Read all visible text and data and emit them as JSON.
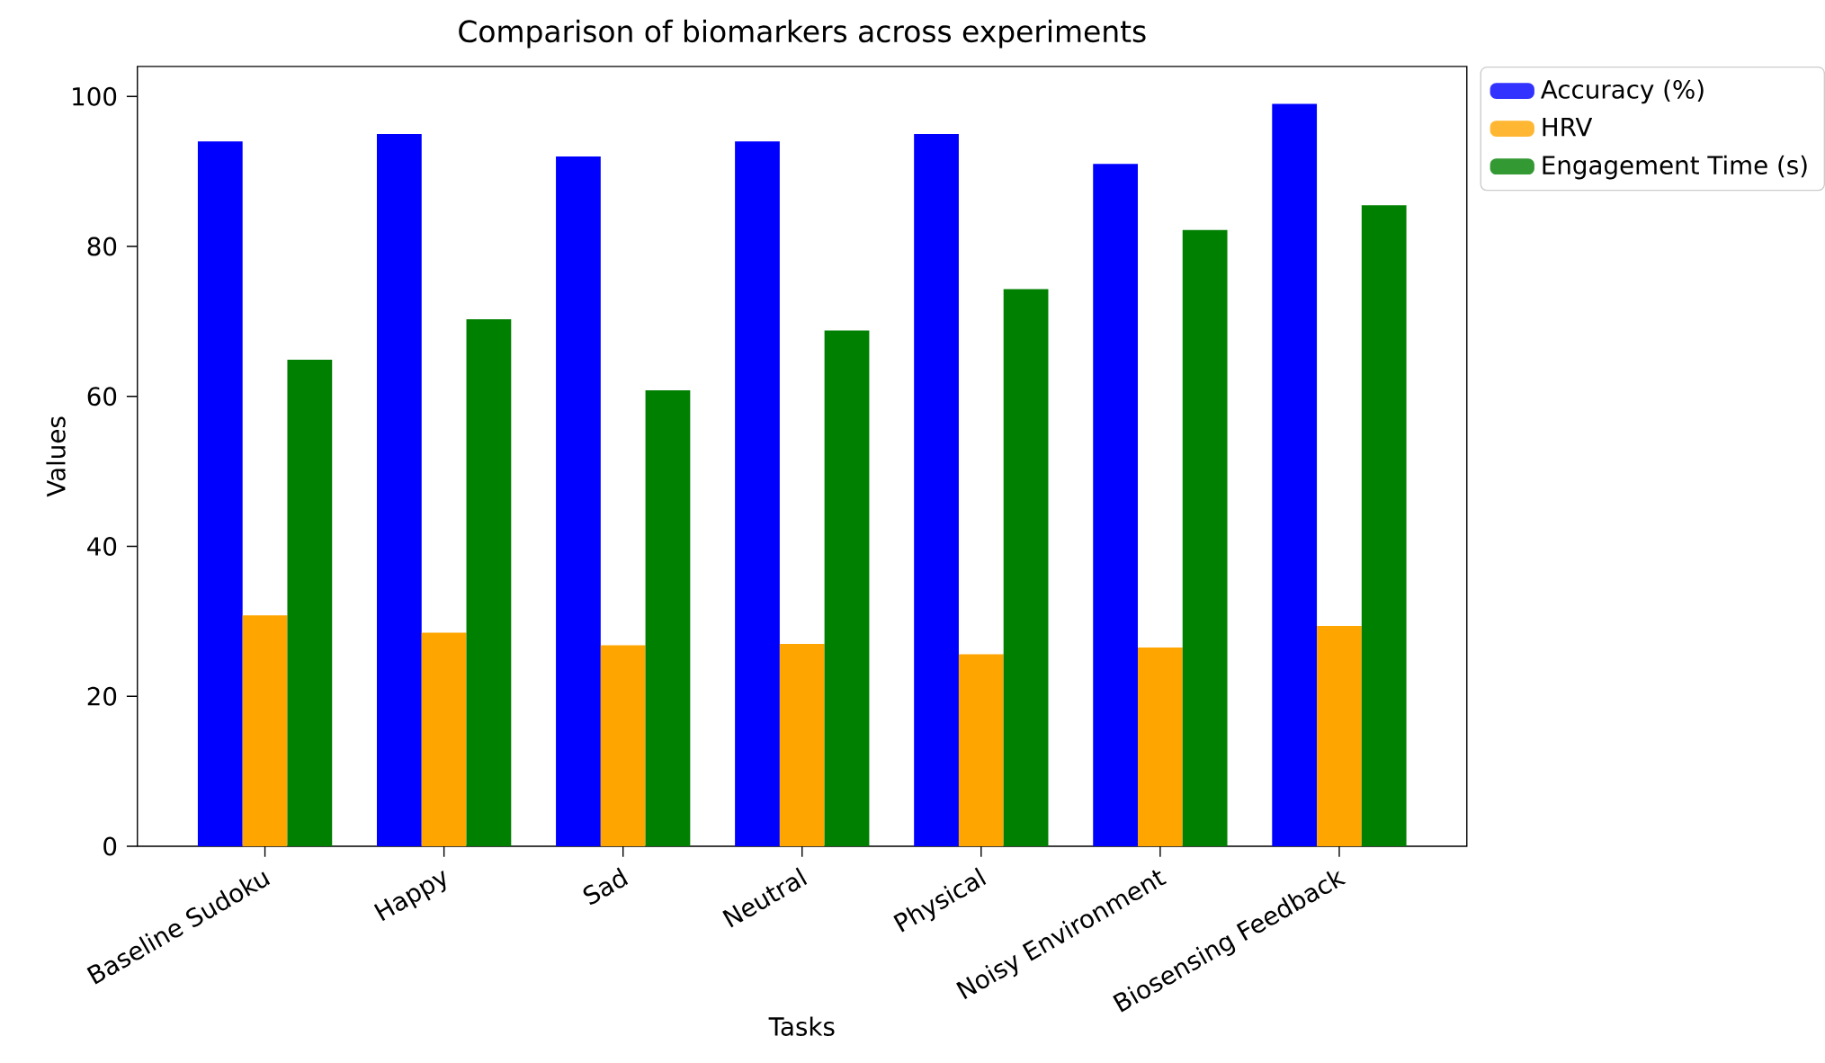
{
  "chart_data": {
    "type": "bar",
    "title": "Comparison of biomarkers across experiments",
    "xlabel": "Tasks",
    "ylabel": "Values",
    "categories": [
      "Baseline Sudoku",
      "Happy",
      "Sad",
      "Neutral",
      "Physical",
      "Noisy Environment",
      "Biosensing Feedback"
    ],
    "series": [
      {
        "name": "Accuracy (%)",
        "color": "#0000ff",
        "values": [
          94,
          95,
          92,
          94,
          95,
          91,
          99
        ]
      },
      {
        "name": "HRV",
        "color": "#ffa500",
        "values": [
          30.8,
          28.5,
          26.8,
          27.0,
          25.6,
          26.5,
          29.4
        ]
      },
      {
        "name": "Engagement Time (s)",
        "color": "#008000",
        "values": [
          64.9,
          70.3,
          60.8,
          68.8,
          74.3,
          82.2,
          85.5
        ]
      }
    ],
    "ylim": [
      0,
      104
    ],
    "yticks": [
      0,
      20,
      40,
      60,
      80,
      100
    ],
    "legend": "right"
  }
}
